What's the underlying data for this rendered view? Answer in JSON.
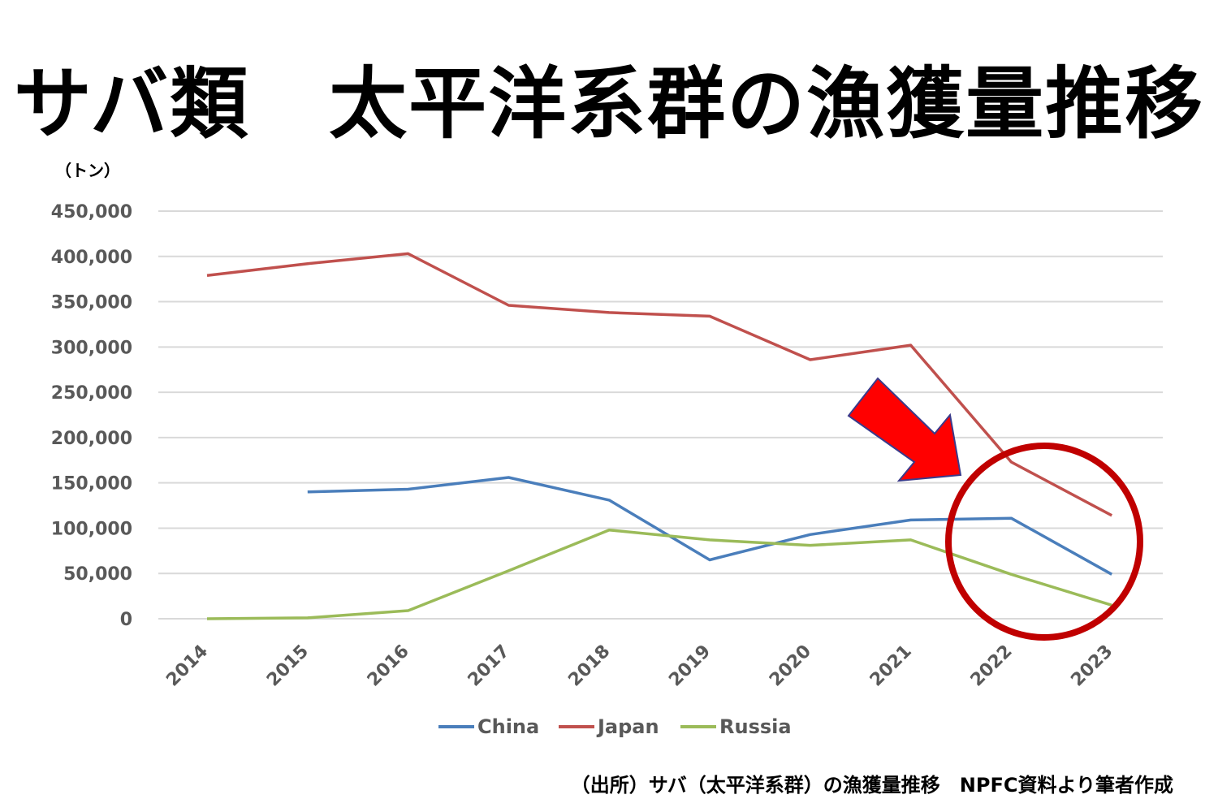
{
  "title": "サバ類　太平洋系群の漁獲量推移",
  "source": "（出所）サバ（太平洋系群）の漁獲量推移　NPFC資料より筆者作成",
  "colors": {
    "china": "#4a7ebb",
    "japan": "#c0504d",
    "russia": "#9bbb59",
    "grid": "#d9d9d9",
    "axis_text": "#595959",
    "highlight_circle": "#c00000",
    "arrow_fill": "#ff0000"
  },
  "chart_data": {
    "type": "line",
    "unit_label": "（トン）",
    "ylim": [
      0,
      450000
    ],
    "y_ticks": [
      0,
      50000,
      100000,
      150000,
      200000,
      250000,
      300000,
      350000,
      400000,
      450000
    ],
    "y_tick_labels": [
      "0",
      "50,000",
      "100,000",
      "150,000",
      "200,000",
      "250,000",
      "300,000",
      "350,000",
      "400,000",
      "450,000"
    ],
    "categories": [
      "2014",
      "2015",
      "2016",
      "2017",
      "2018",
      "2019",
      "2020",
      "2021",
      "2022",
      "2023"
    ],
    "grid": true,
    "legend_position": "bottom",
    "series": [
      {
        "name": "China",
        "color_key": "china",
        "values": [
          null,
          140000,
          143000,
          156000,
          131000,
          65000,
          93000,
          109000,
          111000,
          49000
        ]
      },
      {
        "name": "Japan",
        "color_key": "japan",
        "values": [
          379000,
          392000,
          403000,
          346000,
          338000,
          334000,
          286000,
          302000,
          173000,
          114000
        ]
      },
      {
        "name": "Russia",
        "color_key": "russia",
        "values": [
          0,
          1000,
          9000,
          53000,
          98000,
          87000,
          81000,
          87000,
          49000,
          15000
        ]
      }
    ],
    "annotations": [
      {
        "type": "circle",
        "note": "2022-2023 highlighted"
      },
      {
        "type": "arrow",
        "note": "pointing to 2022-2023"
      }
    ]
  }
}
